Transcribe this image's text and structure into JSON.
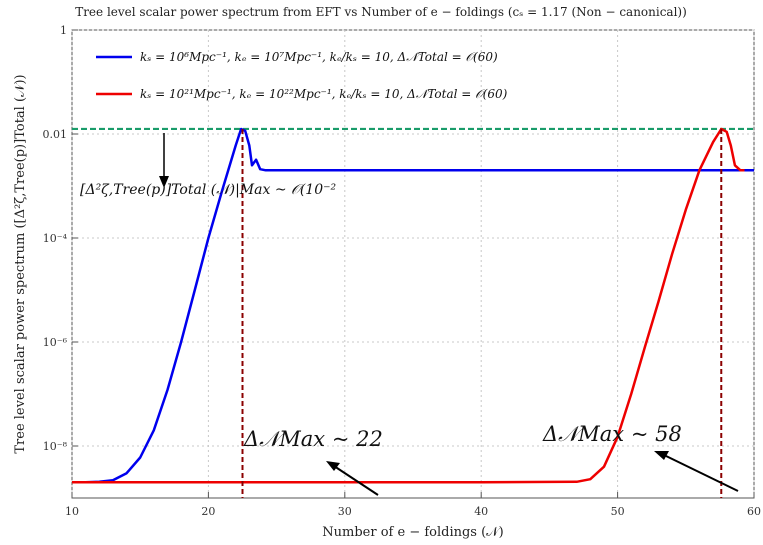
{
  "chart_data": {
    "type": "line",
    "title": "Tree level scalar power spectrum from EFT vs Number of e − foldings (cₛ = 1.17 (Non − canonical))",
    "xlabel": "Number of e − foldings  (𝒩)",
    "ylabel": "Tree level scalar power spectrum  ([Δ²ζ,Tree(p)]Total (𝒩))",
    "xlim": [
      10,
      60
    ],
    "ylim": [
      1e-09,
      1
    ],
    "yscale": "log",
    "grid": true,
    "legend_position": "top-left",
    "x_ticks": [
      10,
      20,
      30,
      40,
      50,
      60
    ],
    "x_tick_labels": [
      "10",
      "20",
      "30",
      "40",
      "50",
      "60"
    ],
    "y_ticks": [
      1e-08,
      1e-06,
      0.0001,
      0.01,
      1
    ],
    "y_tick_labels": [
      "10⁻⁸",
      "10⁻⁶",
      "10⁻⁴",
      "0.01",
      "1"
    ],
    "series": [
      {
        "name": "kₛ = 10⁶Mpc⁻¹, kₑ = 10⁷Mpc⁻¹, kₑ/kₛ = 10, Δ𝒩Total = 𝒪(60)",
        "color": "#0000ee",
        "x": [
          10,
          11,
          12,
          13,
          14,
          15,
          16,
          17,
          18,
          19,
          20,
          21,
          22,
          22.4,
          22.7,
          23.0,
          23.2,
          23.5,
          23.8,
          24.2,
          25,
          30,
          40,
          50,
          55,
          58,
          60
        ],
        "y": [
          2e-09,
          2e-09,
          2.05e-09,
          2.2e-09,
          3e-09,
          6e-09,
          2e-08,
          1.2e-07,
          1e-06,
          1e-05,
          0.0001,
          0.0008,
          0.006,
          0.0125,
          0.0115,
          0.006,
          0.0025,
          0.0032,
          0.0021,
          0.002,
          0.002,
          0.002,
          0.002,
          0.002,
          0.002,
          0.002,
          0.002
        ]
      },
      {
        "name": "kₛ = 10²¹Mpc⁻¹, kₑ = 10²²Mpc⁻¹, kₑ/kₛ = 10, Δ𝒩Total = 𝒪(60)",
        "color": "#ee0000",
        "x": [
          10,
          20,
          30,
          40,
          47,
          48,
          49,
          50,
          51,
          52,
          53,
          54,
          55,
          56,
          57,
          57.6,
          58.0,
          58.3,
          58.6,
          59.0,
          59.3
        ],
        "y": [
          2e-09,
          2e-09,
          2e-09,
          2e-09,
          2.05e-09,
          2.3e-09,
          4e-09,
          1.5e-08,
          1e-07,
          8e-07,
          6e-06,
          5e-05,
          0.00035,
          0.002,
          0.007,
          0.0125,
          0.011,
          0.006,
          0.0025,
          0.002,
          0.002
        ]
      }
    ],
    "reference_line": {
      "y": 0.0125,
      "color": "#1a9c6a",
      "style": "dashed"
    },
    "vertical_markers": [
      {
        "x": 22.5,
        "color": "#8b0000",
        "style": "dashed"
      },
      {
        "x": 57.6,
        "color": "#8b0000",
        "style": "dashed"
      }
    ],
    "annotations": [
      {
        "text": "Δ𝒩Max ~ 22",
        "x": 22.5
      },
      {
        "text": "Δ𝒩Max ~ 58",
        "x": 57.6
      },
      {
        "text": "[Δ²ζ,Tree(p)]Total (𝒩)|Max ~ 𝒪(10⁻²"
      }
    ]
  }
}
